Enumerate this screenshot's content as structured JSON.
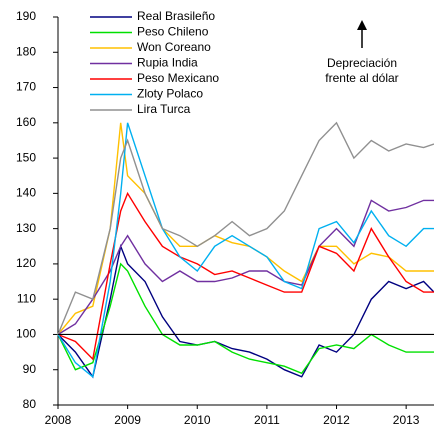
{
  "chart_data": {
    "type": "line",
    "annotation": [
      "Depreciación",
      "frente al dólar"
    ],
    "reference_line": 100,
    "x": [
      2008,
      2008.25,
      2008.5,
      2008.75,
      2008.9,
      2009,
      2009.25,
      2009.5,
      2009.75,
      2010,
      2010.25,
      2010.5,
      2010.75,
      2011,
      2011.25,
      2011.5,
      2011.75,
      2012,
      2012.25,
      2012.5,
      2012.75,
      2013,
      2013.25,
      2013.4
    ],
    "series": [
      {
        "name": "Real Brasileño",
        "color": "#000080",
        "values": [
          100,
          95,
          88,
          110,
          125,
          120,
          115,
          105,
          98,
          97,
          98,
          96,
          95,
          93,
          90,
          88,
          97,
          95,
          100,
          110,
          115,
          113,
          115,
          112
        ]
      },
      {
        "name": "Peso Chileno",
        "color": "#00e000",
        "values": [
          100,
          90,
          92,
          108,
          120,
          118,
          108,
          100,
          97,
          97,
          98,
          95,
          93,
          92,
          91,
          89,
          96,
          97,
          96,
          100,
          97,
          95,
          95,
          95
        ]
      },
      {
        "name": "Won Coreano",
        "color": "#ffc000",
        "values": [
          100,
          106,
          108,
          130,
          160,
          145,
          140,
          130,
          125,
          125,
          128,
          126,
          125,
          122,
          118,
          115,
          125,
          125,
          120,
          123,
          122,
          118,
          118,
          118
        ]
      },
      {
        "name": "Rupia India",
        "color": "#7030a0",
        "values": [
          100,
          103,
          110,
          118,
          125,
          128,
          120,
          115,
          118,
          115,
          115,
          116,
          118,
          118,
          115,
          114,
          125,
          130,
          125,
          138,
          135,
          136,
          138,
          138
        ]
      },
      {
        "name": "Peso Mexicano",
        "color": "#ff0000",
        "values": [
          100,
          98,
          93,
          120,
          135,
          140,
          132,
          125,
          122,
          120,
          117,
          118,
          116,
          114,
          112,
          112,
          125,
          123,
          118,
          130,
          122,
          115,
          112,
          112
        ]
      },
      {
        "name": "Zloty Polaco",
        "color": "#00b0f0",
        "values": [
          100,
          92,
          88,
          115,
          140,
          160,
          145,
          130,
          122,
          118,
          125,
          128,
          125,
          122,
          115,
          113,
          130,
          132,
          126,
          135,
          128,
          125,
          130,
          130
        ]
      },
      {
        "name": "Lira Turca",
        "color": "#909090",
        "values": [
          100,
          112,
          110,
          130,
          150,
          155,
          140,
          130,
          128,
          125,
          128,
          132,
          128,
          130,
          135,
          145,
          155,
          160,
          150,
          155,
          152,
          154,
          153,
          154
        ]
      }
    ],
    "xlim": [
      2008,
      2013.4
    ],
    "xticks": [
      2008,
      2009,
      2010,
      2011,
      2012,
      2013
    ],
    "ylim": [
      80,
      190
    ],
    "yticks": [
      80,
      90,
      100,
      110,
      120,
      130,
      140,
      150,
      160,
      170,
      180,
      190
    ],
    "grid": false
  }
}
